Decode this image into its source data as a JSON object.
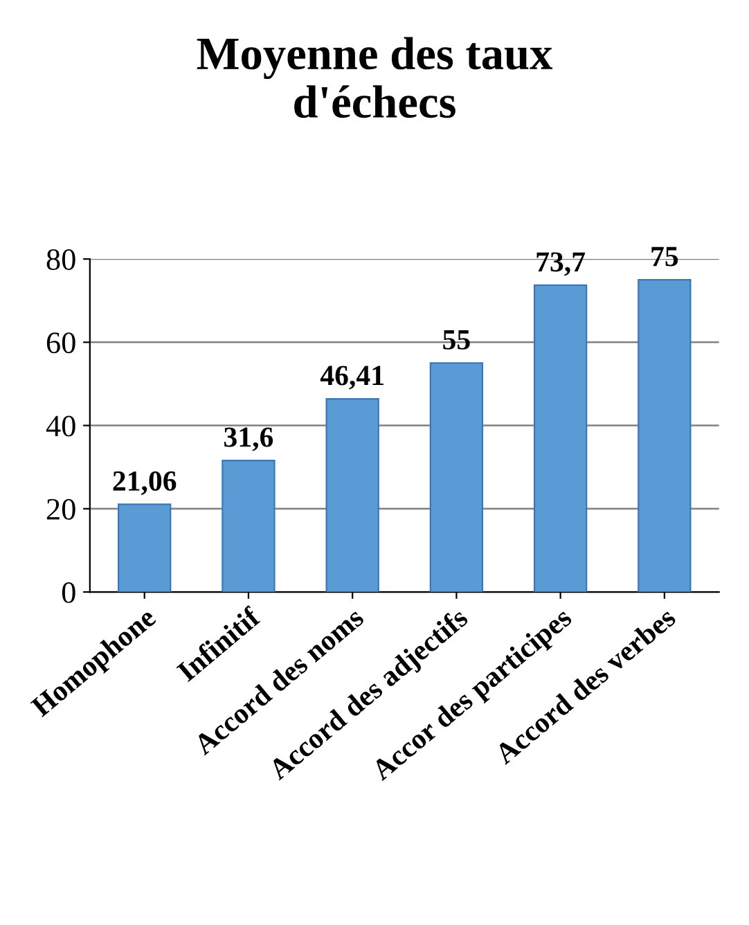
{
  "chart_data": {
    "type": "bar",
    "title": "Moyenne des taux\nd'échecs",
    "categories": [
      "Homophone",
      "Infinitif",
      "Accord des noms",
      "Accord des adjectifs",
      "Accor des participes",
      "Accord des verbes"
    ],
    "values": [
      21.06,
      31.6,
      46.41,
      55,
      73.7,
      75
    ],
    "value_labels": [
      "21,06",
      "31,6",
      "46,41",
      "55",
      "73,7",
      "75"
    ],
    "color": "#5b9bd5",
    "ylim": [
      0,
      80
    ],
    "yticks": [
      0,
      20,
      40,
      60,
      80
    ],
    "grid": "y"
  }
}
